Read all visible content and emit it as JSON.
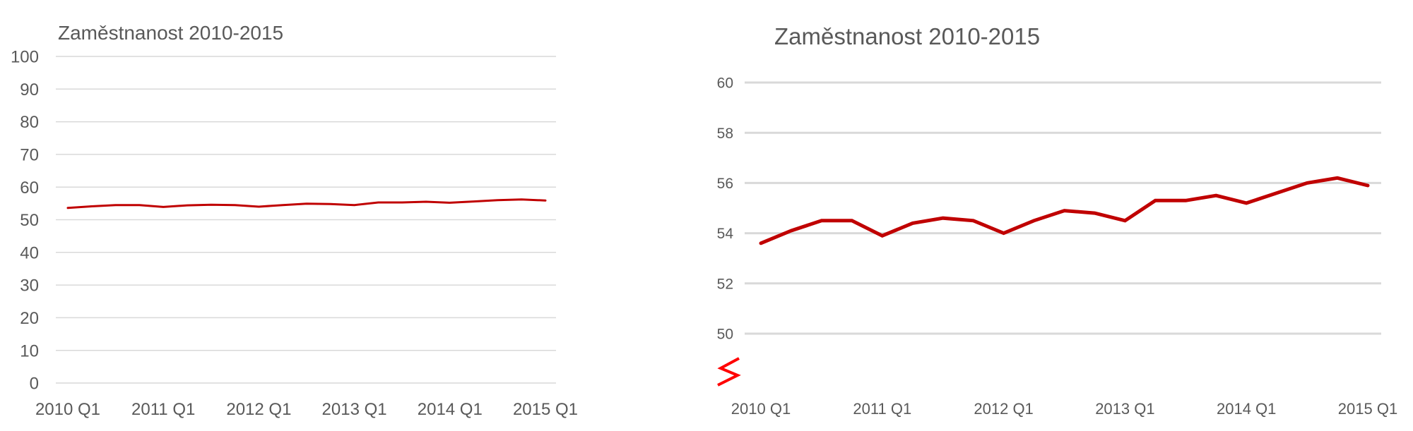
{
  "chart_data": [
    {
      "type": "line",
      "title": "Zaměstnanost 2010-2015",
      "xlabel": "",
      "ylabel": "",
      "ylim": [
        0,
        100
      ],
      "yticks": [
        0,
        10,
        20,
        30,
        40,
        50,
        60,
        70,
        80,
        90,
        100
      ],
      "x_tick_labels": [
        "2010 Q1",
        "2011 Q1",
        "2012 Q1",
        "2013 Q1",
        "2014 Q1",
        "2015 Q1"
      ],
      "grid": true,
      "legend": "none",
      "color": "#C00000",
      "x": [
        "2010 Q1",
        "2010 Q2",
        "2010 Q3",
        "2010 Q4",
        "2011 Q1",
        "2011 Q2",
        "2011 Q3",
        "2011 Q4",
        "2012 Q1",
        "2012 Q2",
        "2012 Q3",
        "2012 Q4",
        "2013 Q1",
        "2013 Q2",
        "2013 Q3",
        "2013 Q4",
        "2014 Q1",
        "2014 Q2",
        "2014 Q3",
        "2014 Q4",
        "2015 Q1"
      ],
      "values": [
        53.6,
        54.1,
        54.5,
        54.5,
        53.9,
        54.4,
        54.6,
        54.5,
        54.0,
        54.5,
        54.9,
        54.8,
        54.5,
        55.3,
        55.3,
        55.5,
        55.2,
        55.6,
        56.0,
        56.2,
        55.9
      ]
    },
    {
      "type": "line",
      "title": "Zaměstnanost 2010-2015",
      "xlabel": "",
      "ylabel": "",
      "ylim": [
        50,
        60
      ],
      "yticks": [
        50,
        52,
        54,
        56,
        58,
        60
      ],
      "x_tick_labels": [
        "2010 Q1",
        "2011 Q1",
        "2012 Q1",
        "2013 Q1",
        "2014 Q1",
        "2015 Q1"
      ],
      "grid": true,
      "legend": "none",
      "axis_break_marker": true,
      "color": "#C00000",
      "break_color": "#FF0000",
      "x": [
        "2010 Q1",
        "2010 Q2",
        "2010 Q3",
        "2010 Q4",
        "2011 Q1",
        "2011 Q2",
        "2011 Q3",
        "2011 Q4",
        "2012 Q1",
        "2012 Q2",
        "2012 Q3",
        "2012 Q4",
        "2013 Q1",
        "2013 Q2",
        "2013 Q3",
        "2013 Q4",
        "2014 Q1",
        "2014 Q2",
        "2014 Q3",
        "2014 Q4",
        "2015 Q1"
      ],
      "values": [
        53.6,
        54.1,
        54.5,
        54.5,
        53.9,
        54.4,
        54.6,
        54.5,
        54.0,
        54.5,
        54.9,
        54.8,
        54.5,
        55.3,
        55.3,
        55.5,
        55.2,
        55.6,
        56.0,
        56.2,
        55.9
      ]
    }
  ]
}
